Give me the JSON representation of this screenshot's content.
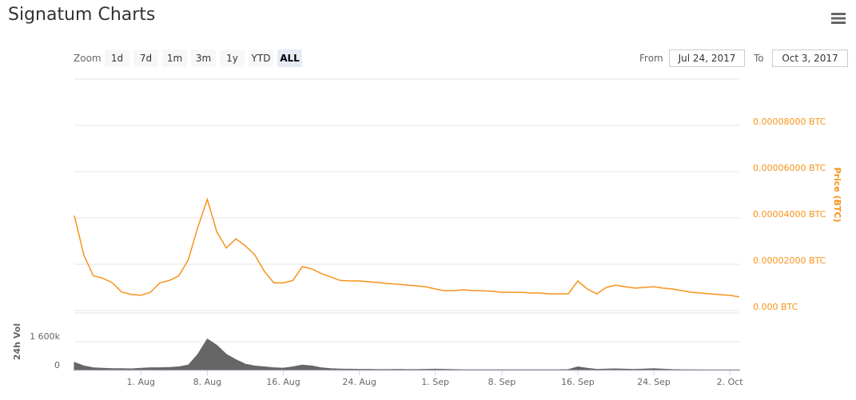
{
  "header": {
    "title": "Signatum Charts"
  },
  "controls": {
    "zoom_label": "Zoom",
    "buttons": [
      "1d",
      "7d",
      "1m",
      "3m",
      "1y",
      "YTD",
      "ALL"
    ],
    "selected_index": 6,
    "from_label": "From",
    "from_value": "Jul 24, 2017",
    "to_label": "To",
    "to_value": "Oct 3, 2017"
  },
  "chart_data": [
    {
      "type": "line",
      "y_label": "Price (BTC)",
      "color": "#f7931a",
      "grid": true,
      "xlim": [
        "2017-07-25",
        "2017-10-03"
      ],
      "ylim": [
        0,
        0.0001
      ],
      "yticks": [
        {
          "value": 0,
          "label": "0.000 BTC"
        },
        {
          "value": 2e-05,
          "label": "0.00002000 BTC"
        },
        {
          "value": 4e-05,
          "label": "0.00004000 BTC"
        },
        {
          "value": 6e-05,
          "label": "0.00006000 BTC"
        },
        {
          "value": 8e-05,
          "label": "0.00008000 BTC"
        }
      ],
      "x": [
        "2017-07-25",
        "2017-07-26",
        "2017-07-27",
        "2017-07-28",
        "2017-07-29",
        "2017-07-30",
        "2017-07-31",
        "2017-08-01",
        "2017-08-02",
        "2017-08-03",
        "2017-08-04",
        "2017-08-05",
        "2017-08-06",
        "2017-08-07",
        "2017-08-08",
        "2017-08-09",
        "2017-08-10",
        "2017-08-11",
        "2017-08-12",
        "2017-08-13",
        "2017-08-14",
        "2017-08-15",
        "2017-08-16",
        "2017-08-17",
        "2017-08-18",
        "2017-08-19",
        "2017-08-20",
        "2017-08-21",
        "2017-08-22",
        "2017-08-23",
        "2017-08-24",
        "2017-08-25",
        "2017-08-26",
        "2017-08-27",
        "2017-08-28",
        "2017-08-29",
        "2017-08-30",
        "2017-08-31",
        "2017-09-01",
        "2017-09-02",
        "2017-09-03",
        "2017-09-04",
        "2017-09-05",
        "2017-09-06",
        "2017-09-07",
        "2017-09-08",
        "2017-09-09",
        "2017-09-10",
        "2017-09-11",
        "2017-09-12",
        "2017-09-13",
        "2017-09-14",
        "2017-09-15",
        "2017-09-16",
        "2017-09-17",
        "2017-09-18",
        "2017-09-19",
        "2017-09-20",
        "2017-09-21",
        "2017-09-22",
        "2017-09-23",
        "2017-09-24",
        "2017-09-25",
        "2017-09-26",
        "2017-09-27",
        "2017-09-28",
        "2017-09-29",
        "2017-09-30",
        "2017-10-01",
        "2017-10-02",
        "2017-10-03"
      ],
      "values": [
        4.1e-05,
        2.4e-05,
        1.5e-05,
        1.4e-05,
        1.2e-05,
        8e-06,
        7e-06,
        6.6e-06,
        7.9e-06,
        1.2e-05,
        1.3e-05,
        1.5e-05,
        2.2e-05,
        3.6e-05,
        4.8e-05,
        3.4e-05,
        2.7e-05,
        3.1e-05,
        2.8e-05,
        2.4e-05,
        1.7e-05,
        1.2e-05,
        1.2e-05,
        1.3e-05,
        1.9e-05,
        1.8e-05,
        1.6e-05,
        1.45e-05,
        1.3e-05,
        1.28e-05,
        1.28e-05,
        1.24e-05,
        1.21e-05,
        1.17e-05,
        1.14e-05,
        1.1e-05,
        1.07e-05,
        1.03e-05,
        9.3e-06,
        8.6e-06,
        8.6e-06,
        9e-06,
        8.6e-06,
        8.6e-06,
        8.3e-06,
        7.9e-06,
        7.9e-06,
        7.9e-06,
        7.6e-06,
        7.6e-06,
        7.2e-06,
        7.2e-06,
        7.2e-06,
        1.28e-05,
        9.3e-06,
        7.2e-06,
        1e-05,
        1.1e-05,
        1.03e-05,
        9.7e-06,
        1e-05,
        1.03e-05,
        9.7e-06,
        9.3e-06,
        8.6e-06,
        7.9e-06,
        7.6e-06,
        7.2e-06,
        6.9e-06,
        6.6e-06,
        5.9e-06
      ]
    },
    {
      "type": "area",
      "y_label": "24h Vol",
      "color": "#666666",
      "grid": true,
      "xlim": [
        "2017-07-25",
        "2017-10-03"
      ],
      "ylim": [
        0,
        3200000
      ],
      "yticks": [
        0,
        {
          "value": 1600000,
          "label": "1 600k"
        }
      ],
      "xticks": [
        {
          "value": "2017-08-01",
          "label": "1. Aug"
        },
        {
          "value": "2017-08-08",
          "label": "8. Aug"
        },
        {
          "value": "2017-08-16",
          "label": "16. Aug"
        },
        {
          "value": "2017-08-24",
          "label": "24. Aug"
        },
        {
          "value": "2017-09-01",
          "label": "1. Sep"
        },
        {
          "value": "2017-09-08",
          "label": "8. Sep"
        },
        {
          "value": "2017-09-16",
          "label": "16. Sep"
        },
        {
          "value": "2017-09-24",
          "label": "24. Sep"
        },
        {
          "value": "2017-10-02",
          "label": "2. Oct"
        }
      ],
      "x": [
        "2017-07-25",
        "2017-07-26",
        "2017-07-27",
        "2017-07-28",
        "2017-07-29",
        "2017-07-30",
        "2017-07-31",
        "2017-08-01",
        "2017-08-02",
        "2017-08-03",
        "2017-08-04",
        "2017-08-05",
        "2017-08-06",
        "2017-08-07",
        "2017-08-08",
        "2017-08-09",
        "2017-08-10",
        "2017-08-11",
        "2017-08-12",
        "2017-08-13",
        "2017-08-14",
        "2017-08-15",
        "2017-08-16",
        "2017-08-17",
        "2017-08-18",
        "2017-08-19",
        "2017-08-20",
        "2017-08-21",
        "2017-08-22",
        "2017-08-23",
        "2017-08-24",
        "2017-08-25",
        "2017-08-26",
        "2017-08-27",
        "2017-08-28",
        "2017-08-29",
        "2017-08-30",
        "2017-08-31",
        "2017-09-01",
        "2017-09-02",
        "2017-09-03",
        "2017-09-04",
        "2017-09-05",
        "2017-09-06",
        "2017-09-07",
        "2017-09-08",
        "2017-09-09",
        "2017-09-10",
        "2017-09-11",
        "2017-09-12",
        "2017-09-13",
        "2017-09-14",
        "2017-09-15",
        "2017-09-16",
        "2017-09-17",
        "2017-09-18",
        "2017-09-19",
        "2017-09-20",
        "2017-09-21",
        "2017-09-22",
        "2017-09-23",
        "2017-09-24",
        "2017-09-25",
        "2017-09-26",
        "2017-09-27",
        "2017-09-28",
        "2017-09-29",
        "2017-09-30",
        "2017-10-01",
        "2017-10-02",
        "2017-10-03"
      ],
      "values": [
        450000,
        250000,
        150000,
        120000,
        100000,
        100000,
        90000,
        120000,
        150000,
        150000,
        170000,
        200000,
        300000,
        900000,
        1750000,
        1400000,
        900000,
        600000,
        350000,
        250000,
        200000,
        150000,
        130000,
        200000,
        300000,
        250000,
        150000,
        100000,
        80000,
        70000,
        60000,
        60000,
        50000,
        50000,
        60000,
        50000,
        50000,
        60000,
        70000,
        60000,
        50000,
        40000,
        40000,
        40000,
        40000,
        40000,
        40000,
        40000,
        40000,
        40000,
        40000,
        40000,
        50000,
        200000,
        120000,
        60000,
        80000,
        90000,
        70000,
        60000,
        80000,
        100000,
        70000,
        50000,
        40000,
        40000,
        30000,
        30000,
        30000,
        30000,
        30000
      ]
    }
  ]
}
